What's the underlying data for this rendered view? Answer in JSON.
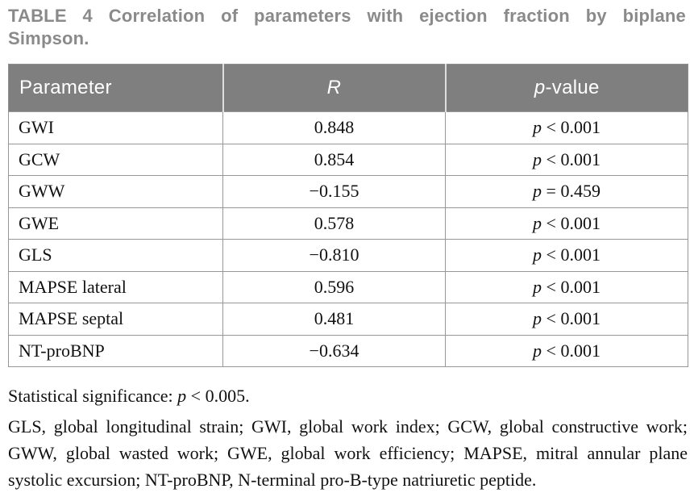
{
  "title": {
    "line1": "TABLE 4 Correlation of parameters with ejection fraction by biplane",
    "line2": "Simpson."
  },
  "table": {
    "headers": {
      "parameter": "Parameter",
      "r": "R",
      "p_italic": "p",
      "p_rest": "-value"
    },
    "p_symbol": "p",
    "rows": [
      {
        "parameter": "GWI",
        "r": "0.848",
        "p": " < 0.001"
      },
      {
        "parameter": "GCW",
        "r": "0.854",
        "p": " < 0.001"
      },
      {
        "parameter": "GWW",
        "r": "−0.155",
        "p": " = 0.459"
      },
      {
        "parameter": "GWE",
        "r": "0.578",
        "p": " < 0.001"
      },
      {
        "parameter": "GLS",
        "r": "−0.810",
        "p": " < 0.001"
      },
      {
        "parameter": "MAPSE lateral",
        "r": "0.596",
        "p": " < 0.001"
      },
      {
        "parameter": "MAPSE septal",
        "r": "0.481",
        "p": " < 0.001"
      },
      {
        "parameter": "NT-proBNP",
        "r": "−0.634",
        "p": " < 0.001"
      }
    ]
  },
  "footnotes": {
    "significance_prefix": "Statistical significance: ",
    "significance_p": "p",
    "significance_rest": " < 0.005.",
    "abbreviations": "GLS, global longitudinal strain; GWI, global work index; GCW, global constructive work; GWW, global wasted work; GWE, global work efficiency; MAPSE, mitral annular plane systolic excursion; NT-proBNP, N-terminal pro-B-type natriuretic peptide."
  },
  "colors": {
    "header_bg": "#7f7f7f",
    "header_text": "#ffffff",
    "title_text": "#8a8a8a",
    "body_border": "#979797",
    "body_text": "#111111"
  }
}
